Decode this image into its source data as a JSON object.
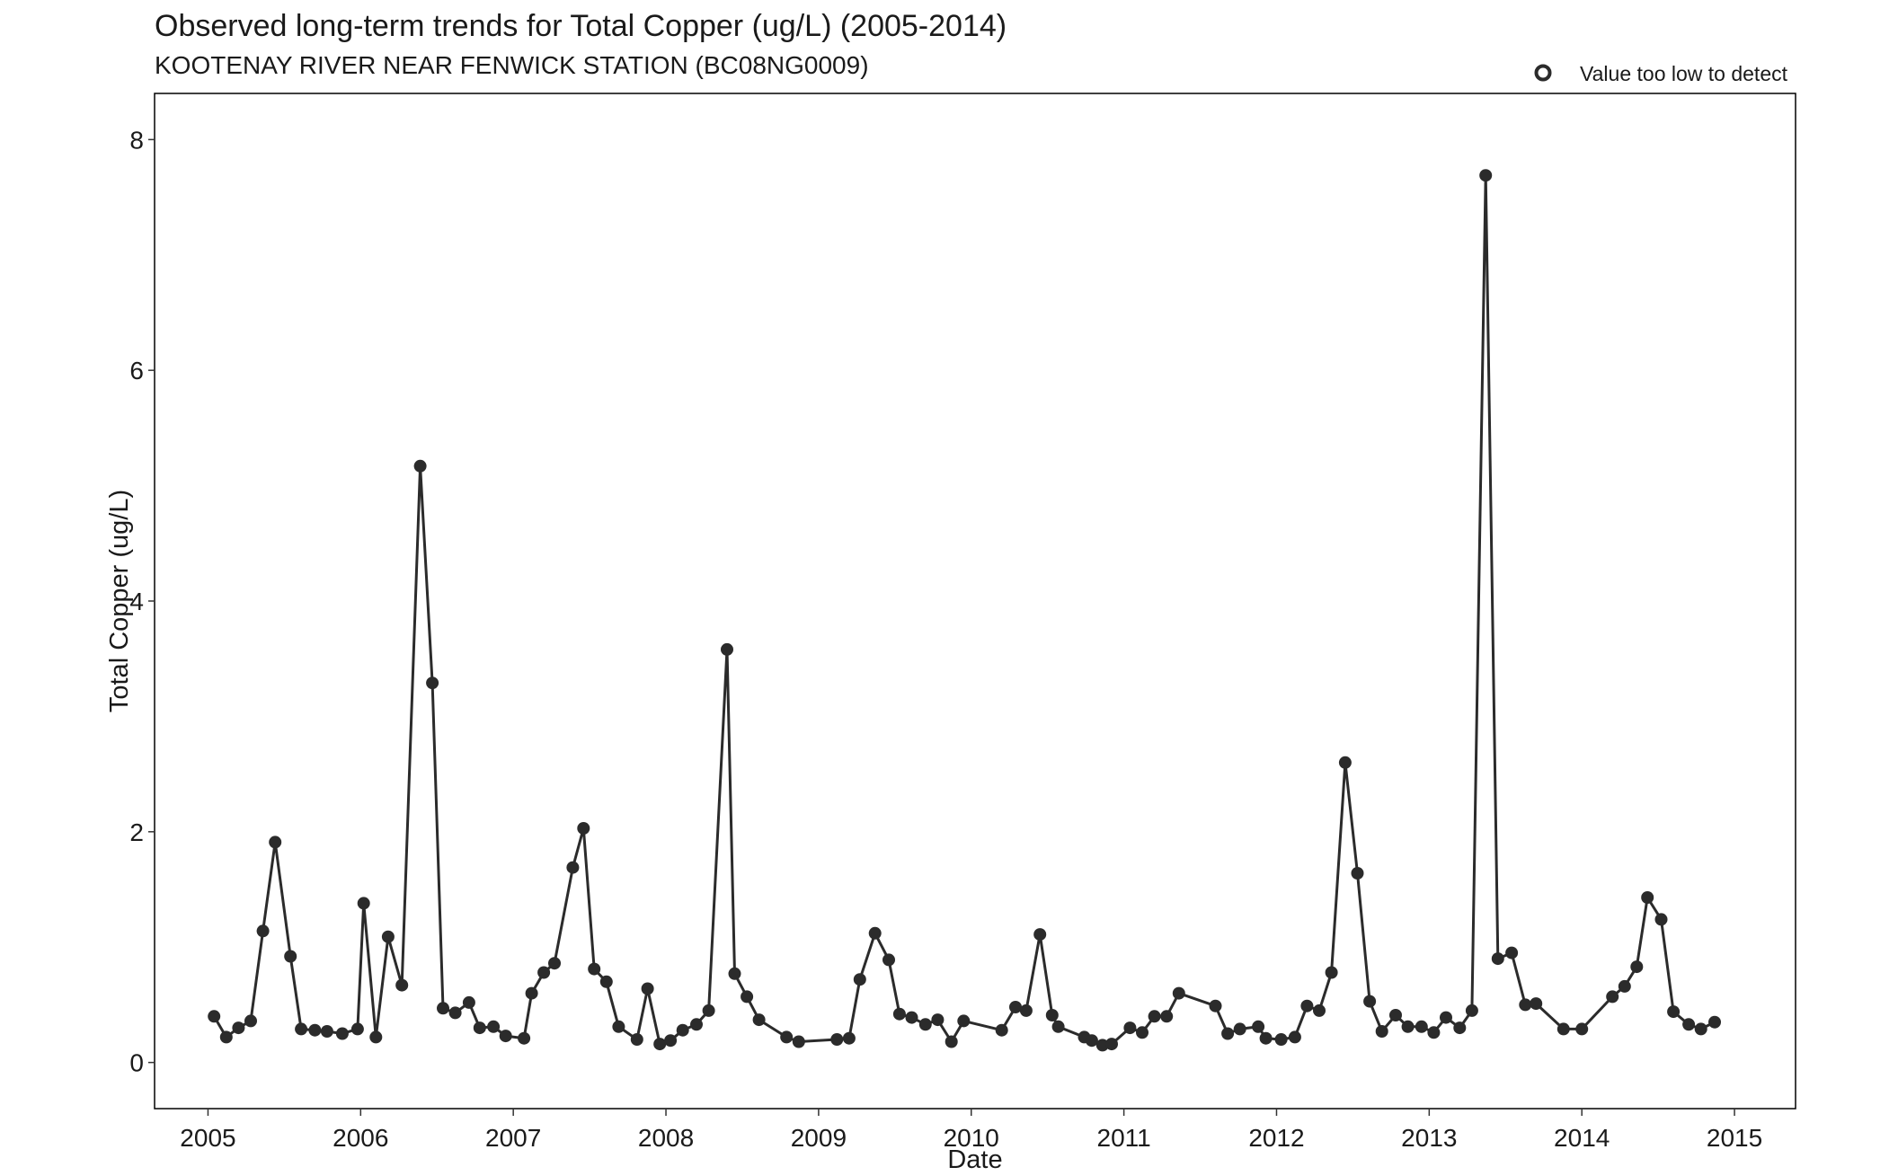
{
  "chart_data": {
    "type": "line",
    "title": "Observed long-term trends for Total Copper (ug/L) (2005-2014)",
    "subtitle": "KOOTENAY RIVER NEAR FENWICK STATION (BC08NG0009)",
    "xlabel": "Date",
    "ylabel": "Total Copper (ug/L)",
    "xlim": [
      2004.65,
      2015.4
    ],
    "ylim": [
      -0.4,
      8.4
    ],
    "x_ticks": [
      2005,
      2006,
      2007,
      2008,
      2009,
      2010,
      2011,
      2012,
      2013,
      2014,
      2015
    ],
    "y_ticks": [
      0,
      2,
      4,
      6,
      8
    ],
    "legend": {
      "label": "Value too low to detect",
      "marker": "open-circle",
      "position": "top-right"
    },
    "grid": false,
    "colors": {
      "line": "#2b2b2b",
      "point": "#2b2b2b",
      "frame": "#000000"
    },
    "series": [
      {
        "x": [
          2005.04,
          2005.12,
          2005.2,
          2005.28,
          2005.36,
          2005.44,
          2005.54,
          2005.61,
          2005.7,
          2005.78,
          2005.88,
          2005.98,
          2006.02,
          2006.1,
          2006.18,
          2006.27,
          2006.39,
          2006.47,
          2006.54,
          2006.62,
          2006.71,
          2006.78,
          2006.87,
          2006.95,
          2007.07,
          2007.12,
          2007.2,
          2007.27,
          2007.39,
          2007.46,
          2007.53,
          2007.61,
          2007.69,
          2007.81,
          2007.88,
          2007.96,
          2008.03,
          2008.11,
          2008.2,
          2008.28,
          2008.4,
          2008.45,
          2008.53,
          2008.61,
          2008.79,
          2008.87,
          2009.12,
          2009.2,
          2009.27,
          2009.37,
          2009.46,
          2009.53,
          2009.61,
          2009.7,
          2009.78,
          2009.87,
          2009.95,
          2010.2,
          2010.29,
          2010.36,
          2010.45,
          2010.53,
          2010.57,
          2010.74,
          2010.79,
          2010.86,
          2010.92,
          2011.04,
          2011.12,
          2011.2,
          2011.28,
          2011.36,
          2011.6,
          2011.68,
          2011.76,
          2011.88,
          2011.93,
          2012.03,
          2012.12,
          2012.2,
          2012.28,
          2012.36,
          2012.45,
          2012.53,
          2012.61,
          2012.69,
          2012.78,
          2012.86,
          2012.95,
          2013.03,
          2013.11,
          2013.2,
          2013.28,
          2013.37,
          2013.45,
          2013.54,
          2013.63,
          2013.7,
          2013.88,
          2014.0,
          2014.2,
          2014.28,
          2014.36,
          2014.43,
          2014.52,
          2014.6,
          2014.7,
          2014.78,
          2014.87
        ],
        "y": [
          0.4,
          0.22,
          0.3,
          0.36,
          1.14,
          1.91,
          0.92,
          0.29,
          0.28,
          0.27,
          0.25,
          0.29,
          1.38,
          0.22,
          1.09,
          0.67,
          5.17,
          3.29,
          0.47,
          0.43,
          0.52,
          0.3,
          0.31,
          0.23,
          0.21,
          0.6,
          0.78,
          0.86,
          1.69,
          2.03,
          0.81,
          0.7,
          0.31,
          0.2,
          0.64,
          0.16,
          0.19,
          0.28,
          0.33,
          0.45,
          3.58,
          0.77,
          0.57,
          0.37,
          0.22,
          0.18,
          0.2,
          0.21,
          0.72,
          1.12,
          0.89,
          0.42,
          0.39,
          0.33,
          0.37,
          0.18,
          0.36,
          0.28,
          0.48,
          0.45,
          1.11,
          0.41,
          0.31,
          0.22,
          0.19,
          0.15,
          0.16,
          0.3,
          0.26,
          0.4,
          0.4,
          0.6,
          0.49,
          0.25,
          0.29,
          0.31,
          0.21,
          0.2,
          0.22,
          0.49,
          0.45,
          0.78,
          2.6,
          1.64,
          0.53,
          0.27,
          0.41,
          0.31,
          0.31,
          0.26,
          0.39,
          0.3,
          0.45,
          7.69,
          0.9,
          0.95,
          0.5,
          0.51,
          0.29,
          0.29,
          0.57,
          0.66,
          0.83,
          1.43,
          1.24,
          0.44,
          0.33,
          0.29,
          0.35
        ]
      }
    ]
  }
}
